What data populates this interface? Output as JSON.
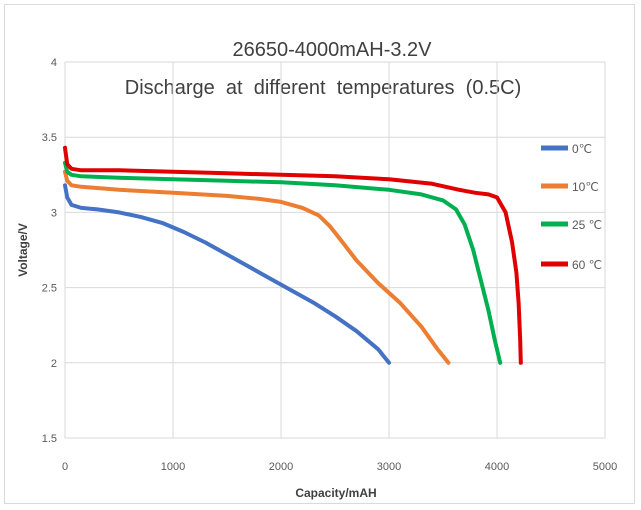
{
  "chart_data": {
    "type": "line",
    "title": "26650-4000mAH-3.2V",
    "subtitle": "Discharge  at  different  temperatures  (0.5C)",
    "xlabel": "Capacity/mAH",
    "ylabel": "Voltage/V",
    "xlim": [
      0,
      5000
    ],
    "ylim": [
      1.5,
      4
    ],
    "xticks": [
      0,
      1000,
      2000,
      3000,
      4000,
      5000
    ],
    "yticks": [
      1.5,
      2,
      2.5,
      3,
      3.5,
      4
    ],
    "xtick_labels": [
      "0",
      "1000",
      "2000",
      "3000",
      "4000",
      "5000"
    ],
    "ytick_labels": [
      "1.5",
      "2",
      "2.5",
      "3",
      "3.5",
      "4"
    ],
    "grid": true,
    "legend_position": "right",
    "series": [
      {
        "name": "0℃",
        "color": "#4472c4",
        "x": [
          0,
          20,
          60,
          150,
          300,
          500,
          700,
          900,
          1100,
          1300,
          1500,
          1700,
          1900,
          2100,
          2300,
          2500,
          2700,
          2900,
          3000
        ],
        "y": [
          3.18,
          3.1,
          3.05,
          3.03,
          3.02,
          3.0,
          2.97,
          2.93,
          2.87,
          2.8,
          2.72,
          2.64,
          2.56,
          2.48,
          2.4,
          2.31,
          2.21,
          2.09,
          2.0
        ]
      },
      {
        "name": "10℃",
        "color": "#ed7d31",
        "x": [
          0,
          20,
          60,
          150,
          500,
          1000,
          1500,
          1800,
          2000,
          2200,
          2350,
          2450,
          2550,
          2700,
          2900,
          3100,
          3300,
          3450,
          3550
        ],
        "y": [
          3.27,
          3.21,
          3.18,
          3.17,
          3.15,
          3.13,
          3.11,
          3.09,
          3.07,
          3.03,
          2.98,
          2.91,
          2.82,
          2.68,
          2.53,
          2.4,
          2.24,
          2.09,
          2.0
        ]
      },
      {
        "name": "25 ℃",
        "color": "#00b050",
        "x": [
          0,
          20,
          60,
          150,
          500,
          1000,
          1500,
          2000,
          2500,
          3000,
          3300,
          3500,
          3620,
          3700,
          3780,
          3850,
          3920,
          3980,
          4030
        ],
        "y": [
          3.33,
          3.27,
          3.25,
          3.24,
          3.23,
          3.22,
          3.21,
          3.2,
          3.18,
          3.15,
          3.12,
          3.08,
          3.02,
          2.92,
          2.75,
          2.55,
          2.35,
          2.15,
          2.0
        ]
      },
      {
        "name": "60 ℃",
        "color": "#e00000",
        "x": [
          0,
          20,
          60,
          150,
          500,
          1000,
          1500,
          2000,
          2500,
          3000,
          3400,
          3650,
          3800,
          3920,
          4000,
          4080,
          4140,
          4180,
          4200,
          4215,
          4220
        ],
        "y": [
          3.43,
          3.32,
          3.29,
          3.28,
          3.28,
          3.27,
          3.26,
          3.25,
          3.24,
          3.22,
          3.19,
          3.15,
          3.13,
          3.12,
          3.1,
          3.0,
          2.8,
          2.6,
          2.4,
          2.15,
          2.0
        ]
      }
    ]
  }
}
